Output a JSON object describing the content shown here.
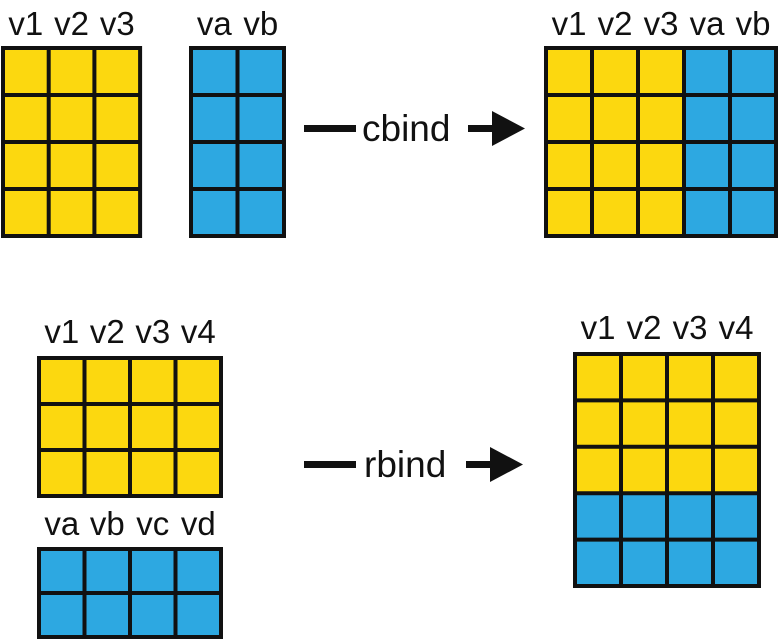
{
  "colors": {
    "yellow": "#FCD80F",
    "blue": "#2DA8E1",
    "line": "#111111"
  },
  "cbind": {
    "left": {
      "columns": [
        "v1",
        "v2",
        "v3"
      ],
      "rows": 4,
      "color": "yellow"
    },
    "right": {
      "columns": [
        "va",
        "vb"
      ],
      "rows": 4,
      "color": "blue"
    },
    "operator": "cbind",
    "result": {
      "columns": [
        "v1",
        "v2",
        "v3",
        "va",
        "vb"
      ],
      "rows": 4,
      "colors": [
        "yellow",
        "yellow",
        "yellow",
        "blue",
        "blue"
      ]
    }
  },
  "rbind": {
    "top": {
      "columns": [
        "v1",
        "v2",
        "v3",
        "v4"
      ],
      "rows": 3,
      "color": "yellow"
    },
    "bottom": {
      "columns": [
        "va",
        "vb",
        "vc",
        "vd"
      ],
      "rows": 2,
      "color": "blue"
    },
    "operator": "rbind",
    "result": {
      "columns": [
        "v1",
        "v2",
        "v3",
        "v4"
      ],
      "row_colors": [
        "yellow",
        "yellow",
        "yellow",
        "blue",
        "blue"
      ]
    }
  }
}
